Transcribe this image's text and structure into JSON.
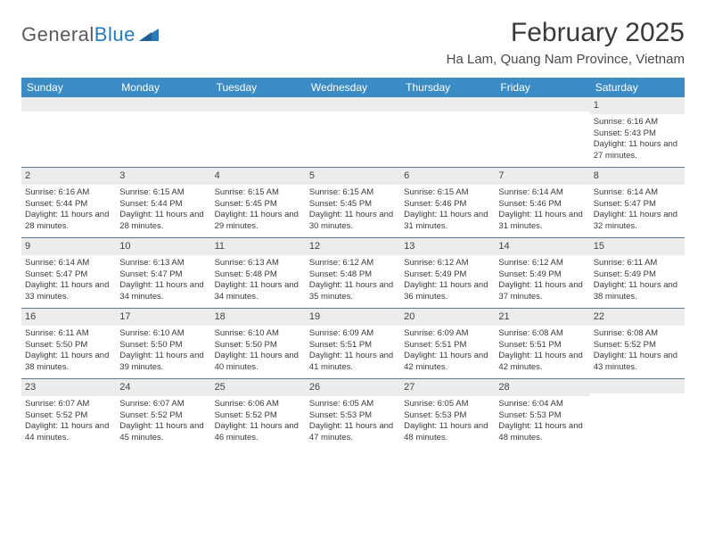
{
  "logo": {
    "text1": "General",
    "text2": "Blue"
  },
  "header": {
    "month_title": "February 2025",
    "location": "Ha Lam, Quang Nam Province, Vietnam"
  },
  "colors": {
    "header_bg": "#3b8bc4",
    "header_text": "#ffffff",
    "grid_border": "#5a7a95",
    "daynum_bg": "#ececec",
    "body_text": "#3a3a3a",
    "logo_gray": "#5a5a5a",
    "logo_blue": "#2a7ab8"
  },
  "weekdays": [
    "Sunday",
    "Monday",
    "Tuesday",
    "Wednesday",
    "Thursday",
    "Friday",
    "Saturday"
  ],
  "weeks": [
    [
      {
        "num": "",
        "lines": []
      },
      {
        "num": "",
        "lines": []
      },
      {
        "num": "",
        "lines": []
      },
      {
        "num": "",
        "lines": []
      },
      {
        "num": "",
        "lines": []
      },
      {
        "num": "",
        "lines": []
      },
      {
        "num": "1",
        "lines": [
          "Sunrise: 6:16 AM",
          "Sunset: 5:43 PM",
          "Daylight: 11 hours and 27 minutes."
        ]
      }
    ],
    [
      {
        "num": "2",
        "lines": [
          "Sunrise: 6:16 AM",
          "Sunset: 5:44 PM",
          "Daylight: 11 hours and 28 minutes."
        ]
      },
      {
        "num": "3",
        "lines": [
          "Sunrise: 6:15 AM",
          "Sunset: 5:44 PM",
          "Daylight: 11 hours and 28 minutes."
        ]
      },
      {
        "num": "4",
        "lines": [
          "Sunrise: 6:15 AM",
          "Sunset: 5:45 PM",
          "Daylight: 11 hours and 29 minutes."
        ]
      },
      {
        "num": "5",
        "lines": [
          "Sunrise: 6:15 AM",
          "Sunset: 5:45 PM",
          "Daylight: 11 hours and 30 minutes."
        ]
      },
      {
        "num": "6",
        "lines": [
          "Sunrise: 6:15 AM",
          "Sunset: 5:46 PM",
          "Daylight: 11 hours and 31 minutes."
        ]
      },
      {
        "num": "7",
        "lines": [
          "Sunrise: 6:14 AM",
          "Sunset: 5:46 PM",
          "Daylight: 11 hours and 31 minutes."
        ]
      },
      {
        "num": "8",
        "lines": [
          "Sunrise: 6:14 AM",
          "Sunset: 5:47 PM",
          "Daylight: 11 hours and 32 minutes."
        ]
      }
    ],
    [
      {
        "num": "9",
        "lines": [
          "Sunrise: 6:14 AM",
          "Sunset: 5:47 PM",
          "Daylight: 11 hours and 33 minutes."
        ]
      },
      {
        "num": "10",
        "lines": [
          "Sunrise: 6:13 AM",
          "Sunset: 5:47 PM",
          "Daylight: 11 hours and 34 minutes."
        ]
      },
      {
        "num": "11",
        "lines": [
          "Sunrise: 6:13 AM",
          "Sunset: 5:48 PM",
          "Daylight: 11 hours and 34 minutes."
        ]
      },
      {
        "num": "12",
        "lines": [
          "Sunrise: 6:12 AM",
          "Sunset: 5:48 PM",
          "Daylight: 11 hours and 35 minutes."
        ]
      },
      {
        "num": "13",
        "lines": [
          "Sunrise: 6:12 AM",
          "Sunset: 5:49 PM",
          "Daylight: 11 hours and 36 minutes."
        ]
      },
      {
        "num": "14",
        "lines": [
          "Sunrise: 6:12 AM",
          "Sunset: 5:49 PM",
          "Daylight: 11 hours and 37 minutes."
        ]
      },
      {
        "num": "15",
        "lines": [
          "Sunrise: 6:11 AM",
          "Sunset: 5:49 PM",
          "Daylight: 11 hours and 38 minutes."
        ]
      }
    ],
    [
      {
        "num": "16",
        "lines": [
          "Sunrise: 6:11 AM",
          "Sunset: 5:50 PM",
          "Daylight: 11 hours and 38 minutes."
        ]
      },
      {
        "num": "17",
        "lines": [
          "Sunrise: 6:10 AM",
          "Sunset: 5:50 PM",
          "Daylight: 11 hours and 39 minutes."
        ]
      },
      {
        "num": "18",
        "lines": [
          "Sunrise: 6:10 AM",
          "Sunset: 5:50 PM",
          "Daylight: 11 hours and 40 minutes."
        ]
      },
      {
        "num": "19",
        "lines": [
          "Sunrise: 6:09 AM",
          "Sunset: 5:51 PM",
          "Daylight: 11 hours and 41 minutes."
        ]
      },
      {
        "num": "20",
        "lines": [
          "Sunrise: 6:09 AM",
          "Sunset: 5:51 PM",
          "Daylight: 11 hours and 42 minutes."
        ]
      },
      {
        "num": "21",
        "lines": [
          "Sunrise: 6:08 AM",
          "Sunset: 5:51 PM",
          "Daylight: 11 hours and 42 minutes."
        ]
      },
      {
        "num": "22",
        "lines": [
          "Sunrise: 6:08 AM",
          "Sunset: 5:52 PM",
          "Daylight: 11 hours and 43 minutes."
        ]
      }
    ],
    [
      {
        "num": "23",
        "lines": [
          "Sunrise: 6:07 AM",
          "Sunset: 5:52 PM",
          "Daylight: 11 hours and 44 minutes."
        ]
      },
      {
        "num": "24",
        "lines": [
          "Sunrise: 6:07 AM",
          "Sunset: 5:52 PM",
          "Daylight: 11 hours and 45 minutes."
        ]
      },
      {
        "num": "25",
        "lines": [
          "Sunrise: 6:06 AM",
          "Sunset: 5:52 PM",
          "Daylight: 11 hours and 46 minutes."
        ]
      },
      {
        "num": "26",
        "lines": [
          "Sunrise: 6:05 AM",
          "Sunset: 5:53 PM",
          "Daylight: 11 hours and 47 minutes."
        ]
      },
      {
        "num": "27",
        "lines": [
          "Sunrise: 6:05 AM",
          "Sunset: 5:53 PM",
          "Daylight: 11 hours and 48 minutes."
        ]
      },
      {
        "num": "28",
        "lines": [
          "Sunrise: 6:04 AM",
          "Sunset: 5:53 PM",
          "Daylight: 11 hours and 48 minutes."
        ]
      },
      {
        "num": "",
        "lines": []
      }
    ]
  ]
}
